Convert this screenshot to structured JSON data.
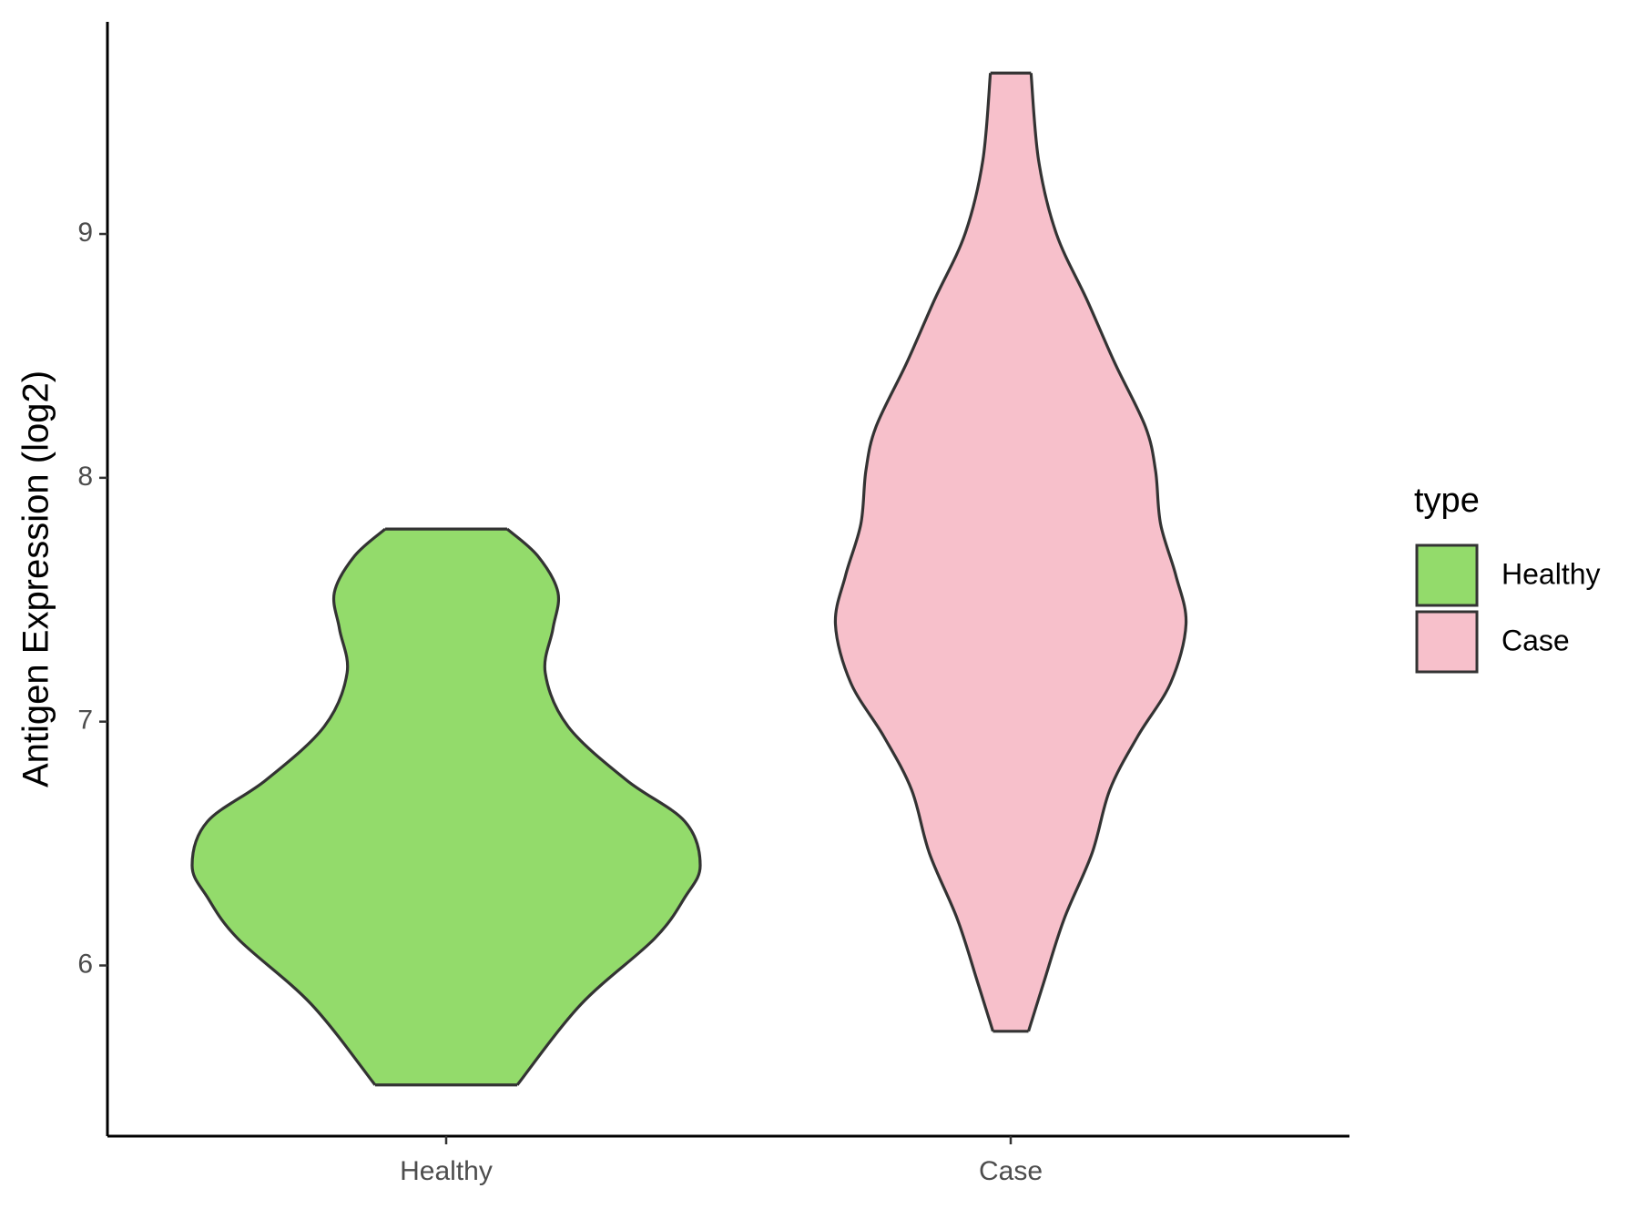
{
  "chart_data": {
    "type": "violin",
    "y_label": "Antigen Expression (log2)",
    "categories": [
      "Healthy",
      "Case"
    ],
    "ylim": [
      5.3,
      9.87
    ],
    "yticks": [
      6,
      7,
      8,
      9
    ],
    "legend_title": "type",
    "legend_position": "right",
    "outline_color": "#333333",
    "series": [
      {
        "name": "Healthy",
        "color": "#93db6b",
        "y": [
          5.51,
          5.84,
          6.11,
          6.28,
          6.41,
          6.59,
          6.76,
          6.98,
          7.2,
          7.38,
          7.53,
          7.68,
          7.79
        ],
        "density": [
          0.28,
          0.53,
          0.82,
          0.94,
          1.0,
          0.94,
          0.71,
          0.48,
          0.39,
          0.42,
          0.44,
          0.36,
          0.24
        ]
      },
      {
        "name": "Case",
        "color": "#f7c0cb",
        "y": [
          5.73,
          5.93,
          6.19,
          6.46,
          6.72,
          6.94,
          7.16,
          7.4,
          7.6,
          7.81,
          8.03,
          8.21,
          8.47,
          8.73,
          9.0,
          9.3,
          9.66
        ],
        "density": [
          0.07,
          0.13,
          0.21,
          0.32,
          0.39,
          0.5,
          0.63,
          0.69,
          0.65,
          0.59,
          0.57,
          0.53,
          0.41,
          0.3,
          0.18,
          0.11,
          0.08
        ]
      }
    ]
  }
}
